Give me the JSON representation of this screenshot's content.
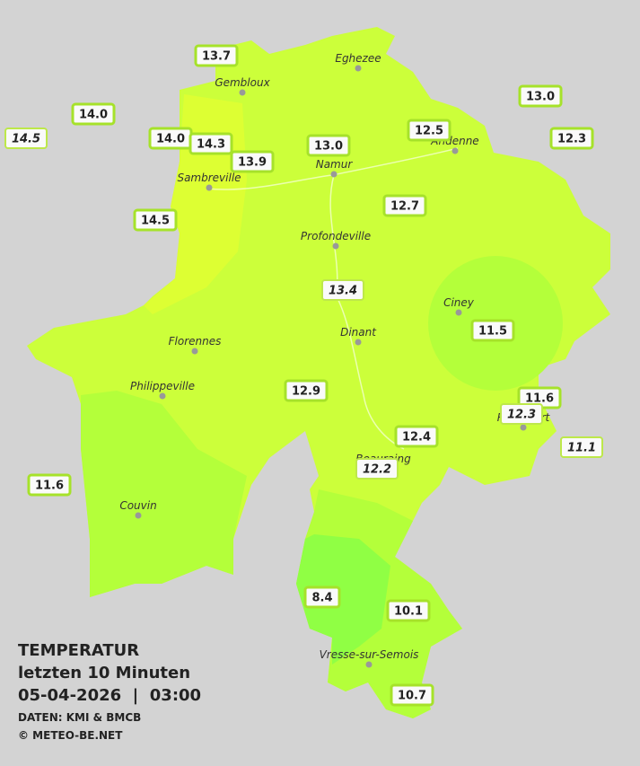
{
  "map": {
    "places": [
      "Eghezee",
      "Gembloux",
      "Andenne",
      "Namur",
      "Sambreville",
      "Profondeville",
      "Ciney",
      "Dinant",
      "Florennes",
      "Philippeville",
      "Rochefort",
      "Beauraing",
      "Couvin",
      "Vresse-sur-Semois"
    ],
    "stations": [
      {
        "label": "13.7"
      },
      {
        "label": "14.0"
      },
      {
        "label": "14.5",
        "italic": true
      },
      {
        "label": "14.0"
      },
      {
        "label": "14.3"
      },
      {
        "label": "13.9"
      },
      {
        "label": "13.0"
      },
      {
        "label": "12.5"
      },
      {
        "label": "13.0"
      },
      {
        "label": "12.3"
      },
      {
        "label": "12.7"
      },
      {
        "label": "14.5"
      },
      {
        "label": "13.4",
        "italic": true
      },
      {
        "label": "11.5"
      },
      {
        "label": "12.9"
      },
      {
        "label": "11.6"
      },
      {
        "label": "12.3",
        "italic": true
      },
      {
        "label": "12.4"
      },
      {
        "label": "11.1",
        "italic": true
      },
      {
        "label": "12.2",
        "italic": true
      },
      {
        "label": "11.6"
      },
      {
        "label": "8.4"
      },
      {
        "label": "10.1"
      },
      {
        "label": "10.7"
      }
    ]
  },
  "info": {
    "title": "TEMPERATUR",
    "subtitle": "letzten 10 Minuten",
    "datetime": "05-04-2026  |  03:00",
    "source": "DATEN: KMI & BMCB",
    "copyright": "© METEO-BE.NET"
  }
}
